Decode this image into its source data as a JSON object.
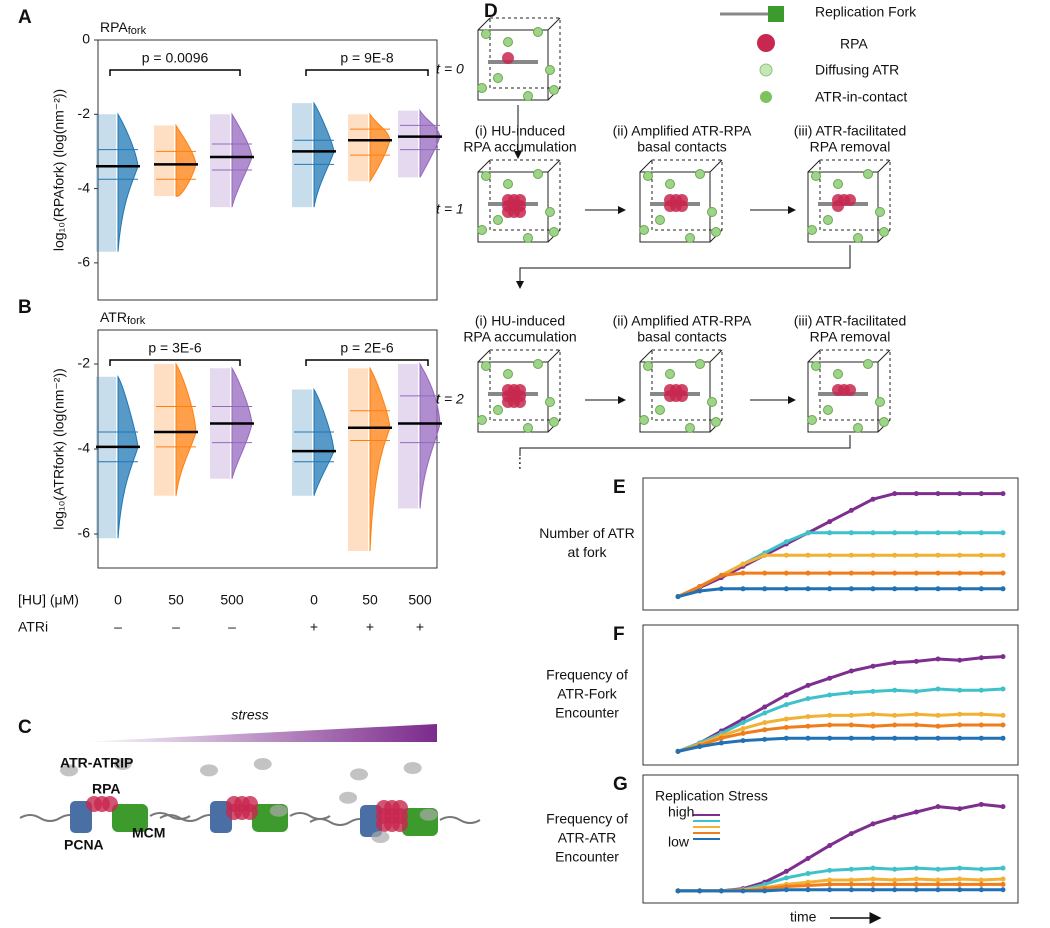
{
  "chart_data": [
    {
      "type": "violin",
      "panel_label": "A",
      "title": {
        "main": "RPA",
        "sub": "fork"
      },
      "ylabel": "log₁₀(RPAfork) (log(nm⁻²))",
      "ylim": [
        -7,
        0
      ],
      "yticks": [
        0,
        -2,
        -4,
        -6
      ],
      "annotations": [
        "p = 0.0096",
        "p = 9E-8"
      ],
      "colors": [
        "#1f77b4",
        "#ff7f0e",
        "#9467bd",
        "#1f77b4",
        "#ff7f0e",
        "#9467bd"
      ],
      "groups": [
        {
          "min": -5.7,
          "q1": -3.75,
          "median": -3.4,
          "q3": -2.95,
          "max": -2.0
        },
        {
          "min": -4.2,
          "q1": -3.75,
          "median": -3.35,
          "q3": -3.0,
          "max": -2.3
        },
        {
          "min": -4.5,
          "q1": -3.5,
          "median": -3.15,
          "q3": -2.8,
          "max": -2.0
        },
        {
          "min": -4.5,
          "q1": -3.35,
          "median": -3.0,
          "q3": -2.7,
          "max": -1.7
        },
        {
          "min": -3.8,
          "q1": -3.1,
          "median": -2.7,
          "q3": -2.4,
          "max": -2.0
        },
        {
          "min": -3.7,
          "q1": -2.95,
          "median": -2.6,
          "q3": -2.3,
          "max": -1.9
        }
      ]
    },
    {
      "type": "violin",
      "panel_label": "B",
      "title": {
        "main": "ATR",
        "sub": "fork"
      },
      "ylabel": "log₁₀(ATRfork) (log(nm⁻²))",
      "ylim": [
        -6.8,
        -1.2
      ],
      "yticks": [
        -2,
        -4,
        -6
      ],
      "annotations": [
        "p = 3E-6",
        "p = 2E-6"
      ],
      "colors": [
        "#1f77b4",
        "#ff7f0e",
        "#9467bd",
        "#1f77b4",
        "#ff7f0e",
        "#9467bd"
      ],
      "groups": [
        {
          "min": -6.1,
          "q1": -4.3,
          "median": -3.95,
          "q3": -3.6,
          "max": -2.3
        },
        {
          "min": -5.1,
          "q1": -3.95,
          "median": -3.6,
          "q3": -3.0,
          "max": -2.0
        },
        {
          "min": -4.7,
          "q1": -3.85,
          "median": -3.4,
          "q3": -3.0,
          "max": -2.1
        },
        {
          "min": -5.1,
          "q1": -4.3,
          "median": -4.05,
          "q3": -3.6,
          "max": -2.6
        },
        {
          "min": -6.4,
          "q1": -3.8,
          "median": -3.5,
          "q3": -3.1,
          "max": -2.1
        },
        {
          "min": -5.4,
          "q1": -3.85,
          "median": -3.4,
          "q3": -2.75,
          "max": -2.0
        }
      ]
    },
    {
      "type": "line",
      "panel_label": "E",
      "ylabel": [
        "Number of ATR",
        "at fork"
      ],
      "ylim": [
        0,
        100
      ],
      "series": [
        {
          "color": "#7d2e8e",
          "values": [
            3,
            11,
            20,
            30,
            40,
            50,
            60,
            70,
            80,
            90,
            95,
            95,
            95,
            95,
            95,
            95
          ]
        },
        {
          "color": "#3fc1c9",
          "values": [
            3,
            12,
            22,
            32,
            42,
            52,
            60,
            60,
            60,
            60,
            60,
            60,
            60,
            60,
            60,
            60
          ]
        },
        {
          "color": "#f2b134",
          "values": [
            3,
            12,
            22,
            32,
            40,
            40,
            40,
            40,
            40,
            40,
            40,
            40,
            40,
            40,
            40,
            40
          ]
        },
        {
          "color": "#f07c1b",
          "values": [
            3,
            12,
            22,
            24,
            24,
            24,
            24,
            24,
            24,
            24,
            24,
            24,
            24,
            24,
            24,
            24
          ]
        },
        {
          "color": "#2171b5",
          "values": [
            3,
            8,
            10,
            10,
            10,
            10,
            10,
            10,
            10,
            10,
            10,
            10,
            10,
            10,
            10,
            10
          ]
        }
      ]
    },
    {
      "type": "line",
      "panel_label": "F",
      "ylabel": [
        "Frequency of",
        "ATR-Fork",
        "Encounter"
      ],
      "ylim": [
        0,
        100
      ],
      "series": [
        {
          "color": "#7d2e8e",
          "values": [
            3,
            10,
            20,
            30,
            40,
            50,
            58,
            64,
            70,
            74,
            77,
            78,
            80,
            79,
            81,
            82
          ]
        },
        {
          "color": "#3fc1c9",
          "values": [
            3,
            10,
            18,
            27,
            35,
            42,
            47,
            50,
            52,
            53,
            54,
            53,
            55,
            54,
            54,
            55
          ]
        },
        {
          "color": "#f2b134",
          "values": [
            3,
            9,
            16,
            22,
            27,
            30,
            32,
            33,
            33,
            34,
            33,
            34,
            33,
            34,
            34,
            33
          ]
        },
        {
          "color": "#f07c1b",
          "values": [
            3,
            8,
            14,
            18,
            21,
            23,
            24,
            25,
            25,
            24,
            25,
            25,
            24,
            25,
            25,
            25
          ]
        },
        {
          "color": "#2171b5",
          "values": [
            3,
            7,
            10,
            12,
            13,
            14,
            14,
            14,
            14,
            14,
            14,
            14,
            14,
            14,
            14,
            14
          ]
        }
      ]
    },
    {
      "type": "line",
      "panel_label": "G",
      "ylabel": [
        "Frequency of",
        "ATR-ATR",
        "Encounter"
      ],
      "ylim": [
        0,
        100
      ],
      "xlabel": "time",
      "legend_title": "Replication Stress",
      "series": [
        {
          "name": "high",
          "color": "#7d2e8e",
          "values": [
            2,
            2,
            2,
            4,
            10,
            20,
            32,
            44,
            55,
            64,
            70,
            75,
            80,
            78,
            82,
            80
          ]
        },
        {
          "color": "#3fc1c9",
          "values": [
            2,
            2,
            2,
            3,
            8,
            14,
            18,
            21,
            22,
            23,
            22,
            23,
            22,
            23,
            22,
            23
          ]
        },
        {
          "color": "#f2b134",
          "values": [
            2,
            2,
            2,
            3,
            5,
            8,
            10,
            12,
            12,
            13,
            12,
            13,
            12,
            13,
            12,
            13
          ]
        },
        {
          "color": "#f07c1b",
          "values": [
            2,
            2,
            2,
            2,
            4,
            6,
            7,
            8,
            8,
            8,
            8,
            8,
            8,
            8,
            8,
            8
          ]
        },
        {
          "name": "low",
          "color": "#2171b5",
          "values": [
            2,
            2,
            2,
            2,
            2,
            3,
            3,
            3,
            3,
            3,
            3,
            3,
            3,
            3,
            3,
            3
          ]
        }
      ]
    }
  ],
  "x_axis_rows": [
    {
      "label": "[HU] (μM)",
      "values": [
        "0",
        "50",
        "500",
        "0",
        "50",
        "500"
      ]
    },
    {
      "label": "ATRi",
      "values": [
        "–",
        "–",
        "–",
        "+",
        "+",
        "+"
      ]
    }
  ],
  "panel_c": {
    "label": "C",
    "gradient_label": "stress",
    "labels": {
      "atr": "ATR-ATRIP",
      "rpa": "RPA",
      "mcm": "MCM",
      "pcna": "PCNA"
    }
  },
  "panel_d": {
    "label": "D",
    "legend": [
      "Replication Fork",
      "RPA",
      "Diffusing ATR",
      "ATR-in-contact"
    ],
    "t_labels": [
      "t = 0",
      "t = 1",
      "t = 2"
    ],
    "stage_rows": [
      [
        [
          "(i) HU-induced",
          "RPA accumulation"
        ],
        [
          "(ii)  Amplified ATR-RPA",
          "basal contacts"
        ],
        [
          "(iii)  ATR-facilitated",
          "RPA removal"
        ]
      ],
      [
        [
          "(i) HU-induced",
          "RPA accumulation"
        ],
        [
          "(ii)  Amplified ATR-RPA",
          "basal contacts"
        ],
        [
          "(iii)  ATR-facilitated",
          "RPA removal"
        ]
      ]
    ],
    "ellipsis": "⋮"
  }
}
